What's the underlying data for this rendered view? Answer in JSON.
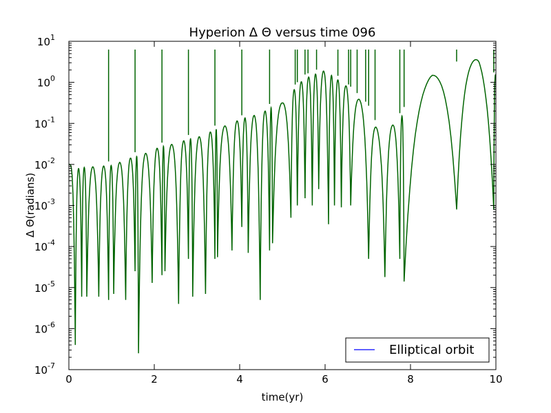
{
  "chart_data": {
    "type": "line",
    "title": "Hyperion Δ Θ versus time 096",
    "xlabel": "time(yr)",
    "ylabel": "Δ Θ(radians)",
    "xlim": [
      0,
      10
    ],
    "ylim_exponent": [
      -7,
      1
    ],
    "yscale": "log",
    "x_ticks": [
      "0",
      "2",
      "4",
      "6",
      "8",
      "10"
    ],
    "y_ticks": [
      {
        "base": "10",
        "exp": "-7"
      },
      {
        "base": "10",
        "exp": "-6"
      },
      {
        "base": "10",
        "exp": "-5"
      },
      {
        "base": "10",
        "exp": "-4"
      },
      {
        "base": "10",
        "exp": "-3"
      },
      {
        "base": "10",
        "exp": "-2"
      },
      {
        "base": "10",
        "exp": "-1"
      },
      {
        "base": "10",
        "exp": "0"
      },
      {
        "base": "10",
        "exp": "1"
      }
    ],
    "grid": false,
    "legend": {
      "position": "bottom-right",
      "entries": [
        {
          "label": "Elliptical orbit",
          "color": "#0000ff"
        }
      ]
    },
    "line_color": "#006400",
    "envelope": {
      "x": [
        0,
        1,
        2,
        3,
        4,
        5,
        5.5,
        6,
        6.5,
        7,
        7.3,
        7.8,
        8.0,
        8.5,
        9.0,
        9.6,
        10
      ],
      "y": [
        0.01,
        0.012,
        0.03,
        0.06,
        0.15,
        0.4,
        1.5,
        2.5,
        1.0,
        0.3,
        0.06,
        0.2,
        0.5,
        2.0,
        3.0,
        5.0,
        1.5
      ]
    },
    "dips": [
      {
        "x": 0.15,
        "y": 4e-07
      },
      {
        "x": 0.3,
        "y": 6e-06
      },
      {
        "x": 0.42,
        "y": 6e-06
      },
      {
        "x": 0.7,
        "y": 6e-06
      },
      {
        "x": 0.93,
        "y": 5e-06
      },
      {
        "x": 1.05,
        "y": 7e-06
      },
      {
        "x": 1.33,
        "y": 5e-06
      },
      {
        "x": 1.55,
        "y": 2.5e-05
      },
      {
        "x": 1.63,
        "y": 2.5e-07
      },
      {
        "x": 1.95,
        "y": 1.3e-05
      },
      {
        "x": 2.18,
        "y": 2e-05
      },
      {
        "x": 2.25,
        "y": 2.5e-05
      },
      {
        "x": 2.57,
        "y": 4e-06
      },
      {
        "x": 2.8,
        "y": 5e-05
      },
      {
        "x": 2.9,
        "y": 6e-06
      },
      {
        "x": 3.2,
        "y": 7e-06
      },
      {
        "x": 3.42,
        "y": 5e-05
      },
      {
        "x": 3.48,
        "y": 5.5e-05
      },
      {
        "x": 3.82,
        "y": 8e-05
      },
      {
        "x": 4.05,
        "y": 0.0003
      },
      {
        "x": 4.2,
        "y": 7e-05
      },
      {
        "x": 4.48,
        "y": 5e-06
      },
      {
        "x": 4.7,
        "y": 8e-05
      },
      {
        "x": 4.77,
        "y": 0.00012
      },
      {
        "x": 5.2,
        "y": 0.0005
      },
      {
        "x": 5.35,
        "y": 0.001
      },
      {
        "x": 5.53,
        "y": 0.0015
      },
      {
        "x": 5.7,
        "y": 0.001
      },
      {
        "x": 5.85,
        "y": 0.0025
      },
      {
        "x": 6.08,
        "y": 0.00035
      },
      {
        "x": 6.22,
        "y": 0.001
      },
      {
        "x": 6.38,
        "y": 0.0009
      },
      {
        "x": 6.6,
        "y": 0.001
      },
      {
        "x": 7.02,
        "y": 5e-05
      },
      {
        "x": 7.4,
        "y": 1.8e-05
      },
      {
        "x": 7.75,
        "y": 5e-05
      },
      {
        "x": 7.85,
        "y": 1.4e-05
      },
      {
        "x": 9.08,
        "y": 0.0008
      },
      {
        "x": 9.95,
        "y": 0.0008
      }
    ],
    "spikes": [
      0.93,
      1.55,
      2.18,
      2.8,
      3.42,
      4.05,
      4.7,
      5.3,
      5.35,
      5.53,
      5.6,
      5.8,
      6.3,
      6.55,
      6.6,
      6.75,
      6.95,
      7.02,
      7.17,
      7.75,
      7.85,
      9.08,
      9.95
    ]
  }
}
